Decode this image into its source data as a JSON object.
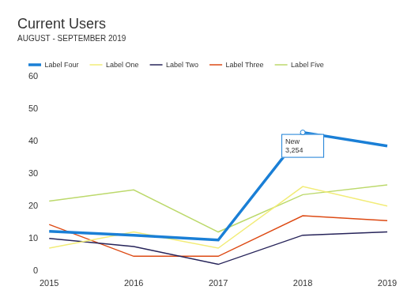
{
  "chart_data": {
    "type": "line",
    "title": "Current Users",
    "subtitle": "AUGUST - SEPTEMBER 2019",
    "categories": [
      "2015",
      "2016",
      "2017",
      "2018",
      "2019"
    ],
    "series": [
      {
        "name": "Label One",
        "color": "#f2ec78",
        "values": [
          7,
          12,
          7,
          26,
          20
        ]
      },
      {
        "name": "Label Two",
        "color": "#27245a",
        "values": [
          10,
          7.5,
          2,
          11,
          12
        ]
      },
      {
        "name": "Label Three",
        "color": "#dd4a14",
        "values": [
          14.3,
          4.5,
          4.5,
          17,
          15.5
        ]
      },
      {
        "name": "Label Four",
        "color": "#1a7fd6",
        "values": [
          12.2,
          11,
          9.5,
          42.7,
          38.5
        ]
      },
      {
        "name": "Label Five",
        "color": "#bcd96b",
        "values": [
          21.5,
          25,
          12,
          23.5,
          26.5
        ]
      }
    ],
    "ylim": [
      0,
      60
    ],
    "yticks": [
      0,
      10,
      20,
      30,
      40,
      50,
      60
    ],
    "grid": false,
    "legend": "top-left",
    "annotations": [
      {
        "category": "2018",
        "series": "Label Four",
        "text": [
          "New",
          "3,254"
        ]
      }
    ]
  }
}
